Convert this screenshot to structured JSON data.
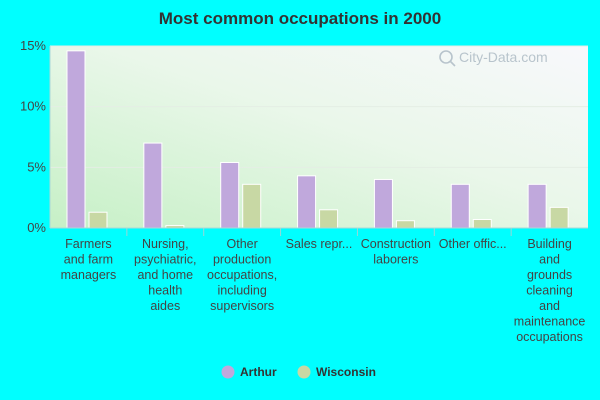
{
  "chart_data": {
    "type": "bar",
    "title": "Most common occupations in 2000",
    "xlabel": "",
    "ylabel": "",
    "ylim": [
      0,
      15
    ],
    "yticks": [
      0,
      5,
      10,
      15
    ],
    "ytick_labels": [
      "0%",
      "5%",
      "10%",
      "15%"
    ],
    "grid": true,
    "legend_position": "bottom-center",
    "categories": [
      [
        "Farmers",
        "and farm",
        "managers"
      ],
      [
        "Nursing,",
        "psychiatric,",
        "and home",
        "health",
        "aides"
      ],
      [
        "Other",
        "production",
        "occupations,",
        "including",
        "supervisors"
      ],
      [
        "Sales repr..."
      ],
      [
        "Construction",
        "laborers"
      ],
      [
        "Other offic..."
      ],
      [
        "Building",
        "and",
        "grounds",
        "cleaning",
        "and",
        "maintenance",
        "occupations"
      ]
    ],
    "series": [
      {
        "name": "Arthur",
        "color": "#c0a8dc",
        "values": [
          14.6,
          7.0,
          5.4,
          4.3,
          4.0,
          3.6,
          3.6
        ]
      },
      {
        "name": "Wisconsin",
        "color": "#c8d8a4",
        "values": [
          1.3,
          0.2,
          3.6,
          1.5,
          0.6,
          0.7,
          1.7
        ]
      }
    ]
  },
  "watermark": "City-Data.com"
}
